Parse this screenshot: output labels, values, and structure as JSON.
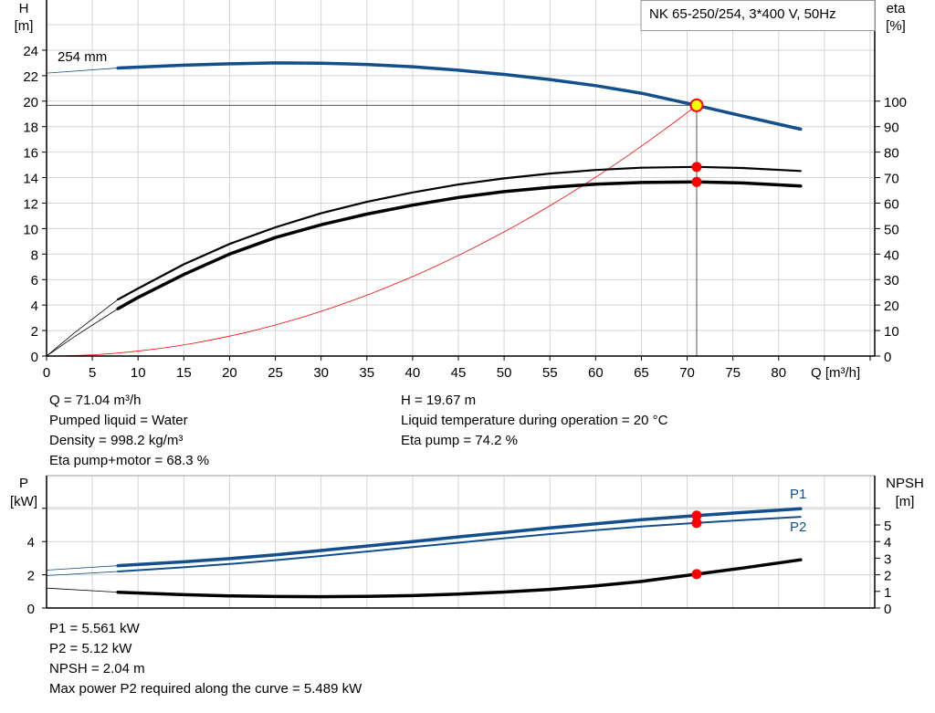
{
  "chart_data": [
    {
      "type": "line",
      "title": "NK 65-250/254, 3*400 V, 50Hz",
      "xlabel": "Q [m³/h]",
      "ylabel_left": [
        "H",
        "[m]"
      ],
      "ylabel_right": [
        "eta",
        "[%]"
      ],
      "xlim": [
        0,
        90
      ],
      "ylim_left": [
        0,
        26
      ],
      "ylim_right": [
        0,
        130
      ],
      "x_ticks": [
        0,
        5,
        10,
        15,
        20,
        25,
        30,
        35,
        40,
        45,
        50,
        55,
        60,
        65,
        70,
        75,
        80
      ],
      "y_ticks_left": [
        0,
        2,
        4,
        6,
        8,
        10,
        12,
        14,
        16,
        18,
        20,
        22,
        24
      ],
      "y_ticks_right": [
        0,
        10,
        20,
        30,
        40,
        50,
        60,
        70,
        80,
        90,
        100
      ],
      "grid": true,
      "curve_label": "254 mm",
      "series": [
        {
          "key": "H",
          "axis": "left",
          "color": "#124f8c",
          "thin": [
            [
              0,
              22.2
            ],
            [
              7.8,
              22.6
            ]
          ],
          "points": [
            [
              7.8,
              22.6
            ],
            [
              15,
              22.82
            ],
            [
              20,
              22.93
            ],
            [
              25,
              23.0
            ],
            [
              30,
              22.98
            ],
            [
              35,
              22.88
            ],
            [
              40,
              22.7
            ],
            [
              45,
              22.43
            ],
            [
              50,
              22.1
            ],
            [
              55,
              21.7
            ],
            [
              60,
              21.22
            ],
            [
              65,
              20.62
            ],
            [
              71.04,
              19.67
            ],
            [
              76,
              18.85
            ],
            [
              82.4,
              17.8
            ]
          ]
        },
        {
          "key": "eta_pump",
          "axis": "right",
          "color": "#000000",
          "thin": [
            [
              0,
              0
            ],
            [
              3,
              9
            ],
            [
              7.8,
              22.2
            ]
          ],
          "points": [
            [
              7.8,
              22.2
            ],
            [
              10,
              26.5
            ],
            [
              15,
              36
            ],
            [
              20,
              44
            ],
            [
              25,
              50.5
            ],
            [
              30,
              56
            ],
            [
              35,
              60.5
            ],
            [
              40,
              64.2
            ],
            [
              45,
              67.3
            ],
            [
              50,
              69.7
            ],
            [
              55,
              71.6
            ],
            [
              60,
              73
            ],
            [
              65,
              73.9
            ],
            [
              71.04,
              74.2
            ],
            [
              76,
              73.8
            ],
            [
              82.4,
              72.6
            ]
          ]
        },
        {
          "key": "eta_pump_motor",
          "axis": "right",
          "color": "#000000",
          "thin": [
            [
              0,
              0
            ],
            [
              3,
              7.5
            ],
            [
              7.8,
              18.6
            ]
          ],
          "points": [
            [
              7.8,
              18.6
            ],
            [
              10,
              23
            ],
            [
              15,
              32
            ],
            [
              20,
              40
            ],
            [
              25,
              46.5
            ],
            [
              30,
              51.5
            ],
            [
              35,
              55.7
            ],
            [
              40,
              59.2
            ],
            [
              45,
              62.2
            ],
            [
              50,
              64.5
            ],
            [
              55,
              66.2
            ],
            [
              60,
              67.4
            ],
            [
              65,
              68.1
            ],
            [
              71.04,
              68.3
            ],
            [
              76,
              67.9
            ],
            [
              82.4,
              66.7
            ]
          ]
        },
        {
          "key": "system",
          "axis": "left",
          "color": "#ff0000",
          "quadratic_to": [
            71.04,
            19.67
          ]
        }
      ],
      "operating_point": {
        "Q": 71.04,
        "H": 19.67,
        "eta_pump": 74.2,
        "eta_pump_motor": 68.3
      }
    },
    {
      "type": "line",
      "xlim": [
        0,
        90
      ],
      "ylabel_left": [
        "P",
        "[kW]"
      ],
      "ylabel_right": [
        "NPSH",
        "[m]"
      ],
      "ylim_left": [
        0,
        8
      ],
      "ylim_right": [
        0,
        8
      ],
      "y_ticks_left": [
        0,
        2,
        4
      ],
      "y_ticks_left_unlabeled": [
        6
      ],
      "y_ticks_right": [
        0,
        1,
        2,
        3,
        4,
        5
      ],
      "y_ticks_right_unlabeled": [
        6
      ],
      "grid": true,
      "series": [
        {
          "name": "P1",
          "axis": "left",
          "color": "#124f8c",
          "thin": [
            [
              0,
              2.28
            ],
            [
              7.8,
              2.55
            ]
          ],
          "points": [
            [
              7.8,
              2.55
            ],
            [
              15,
              2.78
            ],
            [
              20,
              2.97
            ],
            [
              25,
              3.2
            ],
            [
              30,
              3.46
            ],
            [
              35,
              3.73
            ],
            [
              40,
              4.0
            ],
            [
              45,
              4.28
            ],
            [
              50,
              4.55
            ],
            [
              55,
              4.82
            ],
            [
              60,
              5.07
            ],
            [
              65,
              5.32
            ],
            [
              71.04,
              5.561
            ],
            [
              76,
              5.75
            ],
            [
              82.4,
              5.97
            ]
          ]
        },
        {
          "name": "P2",
          "axis": "left",
          "color": "#124f8c",
          "thin": [
            [
              0,
              1.95
            ],
            [
              7.8,
              2.2
            ]
          ],
          "points": [
            [
              7.8,
              2.2
            ],
            [
              15,
              2.45
            ],
            [
              20,
              2.65
            ],
            [
              25,
              2.88
            ],
            [
              30,
              3.13
            ],
            [
              35,
              3.4
            ],
            [
              40,
              3.67
            ],
            [
              45,
              3.93
            ],
            [
              50,
              4.2
            ],
            [
              55,
              4.45
            ],
            [
              60,
              4.68
            ],
            [
              65,
              4.9
            ],
            [
              71.04,
              5.12
            ],
            [
              76,
              5.29
            ],
            [
              82.4,
              5.49
            ]
          ]
        },
        {
          "key": "NPSH",
          "axis": "right",
          "color": "#000000",
          "thin": [
            [
              0,
              1.2
            ],
            [
              7.8,
              0.95
            ]
          ],
          "points": [
            [
              7.8,
              0.95
            ],
            [
              15,
              0.8
            ],
            [
              20,
              0.73
            ],
            [
              25,
              0.69
            ],
            [
              30,
              0.68
            ],
            [
              35,
              0.7
            ],
            [
              40,
              0.75
            ],
            [
              45,
              0.84
            ],
            [
              50,
              0.96
            ],
            [
              55,
              1.12
            ],
            [
              60,
              1.33
            ],
            [
              65,
              1.6
            ],
            [
              71.04,
              2.04
            ],
            [
              76,
              2.4
            ],
            [
              82.4,
              2.9
            ]
          ]
        }
      ],
      "operating_point": {
        "Q": 71.04,
        "P1": 5.561,
        "P2": 5.12,
        "NPSH": 2.04
      }
    }
  ],
  "info_top_left": [
    "Q = 71.04 m³/h",
    "Pumped liquid = Water",
    "Density = 998.2 kg/m³",
    "Eta pump+motor = 68.3 %"
  ],
  "info_top_right": [
    "H = 19.67 m",
    "Liquid temperature during operation = 20 °C",
    "Eta pump = 74.2 %"
  ],
  "info_bottom": [
    "P1 = 5.561 kW",
    "P2 = 5.12 kW",
    "NPSH = 2.04 m",
    "Max power P2 required along the curve = 5.489 kW"
  ],
  "colors": {
    "head": "#124f8c",
    "power": "#124f8c",
    "efficiency": "#000000",
    "system": "#ff0000",
    "point_fill": "#ffff00",
    "point_marker": "#ff0000"
  }
}
